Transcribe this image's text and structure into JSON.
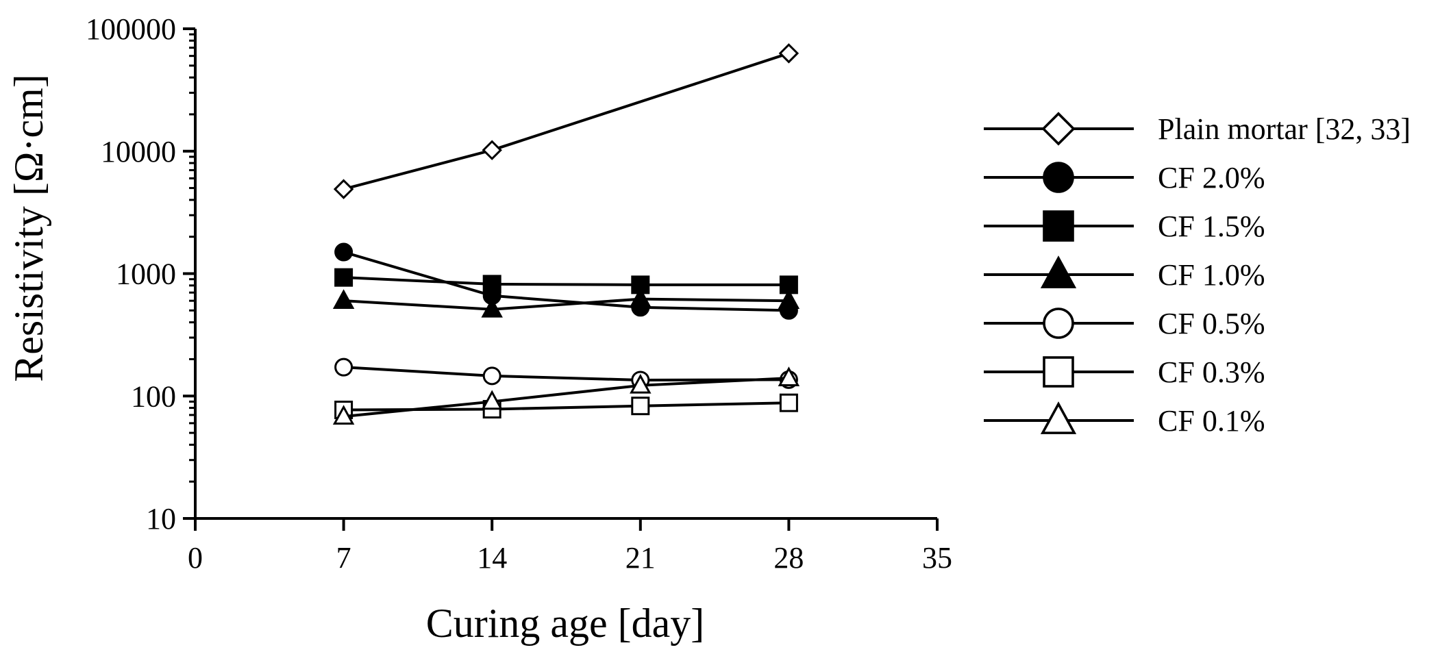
{
  "chart_data": {
    "type": "line",
    "xlabel": "Curing age [day]",
    "ylabel": "Resistivity [Ω·cm]",
    "xlim": [
      0,
      35
    ],
    "ylim": [
      10,
      100000
    ],
    "yscale": "log",
    "x_ticks": [
      0,
      7,
      14,
      21,
      28,
      35
    ],
    "x_tick_labels": [
      "0",
      "7",
      "14",
      "21",
      "28",
      "35"
    ],
    "y_ticks": [
      10,
      100,
      1000,
      10000,
      100000
    ],
    "y_tick_labels": [
      "10",
      "100",
      "1000",
      "10000",
      "100000"
    ],
    "legend_position": "right",
    "x": [
      7,
      14,
      21,
      28
    ],
    "series": [
      {
        "name": "Plain mortar [32, 33]",
        "marker": "diamond-open",
        "x": [
          7,
          14,
          28
        ],
        "values": [
          4900,
          10200,
          63000
        ]
      },
      {
        "name": "CF 2.0%",
        "marker": "circle-filled",
        "x": [
          7,
          14,
          21,
          28
        ],
        "values": [
          1500,
          660,
          530,
          500
        ]
      },
      {
        "name": "CF 1.5%",
        "marker": "square-filled",
        "x": [
          7,
          14,
          21,
          28
        ],
        "values": [
          930,
          820,
          810,
          810
        ]
      },
      {
        "name": "CF 1.0%",
        "marker": "triangle-filled",
        "x": [
          7,
          14,
          21,
          28
        ],
        "values": [
          600,
          510,
          620,
          600
        ]
      },
      {
        "name": "CF 0.5%",
        "marker": "circle-open",
        "x": [
          7,
          14,
          21,
          28
        ],
        "values": [
          172,
          146,
          135,
          136
        ]
      },
      {
        "name": "CF 0.3%",
        "marker": "square-open",
        "x": [
          7,
          14,
          21,
          28
        ],
        "values": [
          77,
          78,
          83,
          88
        ]
      },
      {
        "name": "CF 0.1%",
        "marker": "triangle-open",
        "x": [
          7,
          14,
          21,
          28
        ],
        "values": [
          68,
          90,
          122,
          140
        ]
      }
    ]
  }
}
